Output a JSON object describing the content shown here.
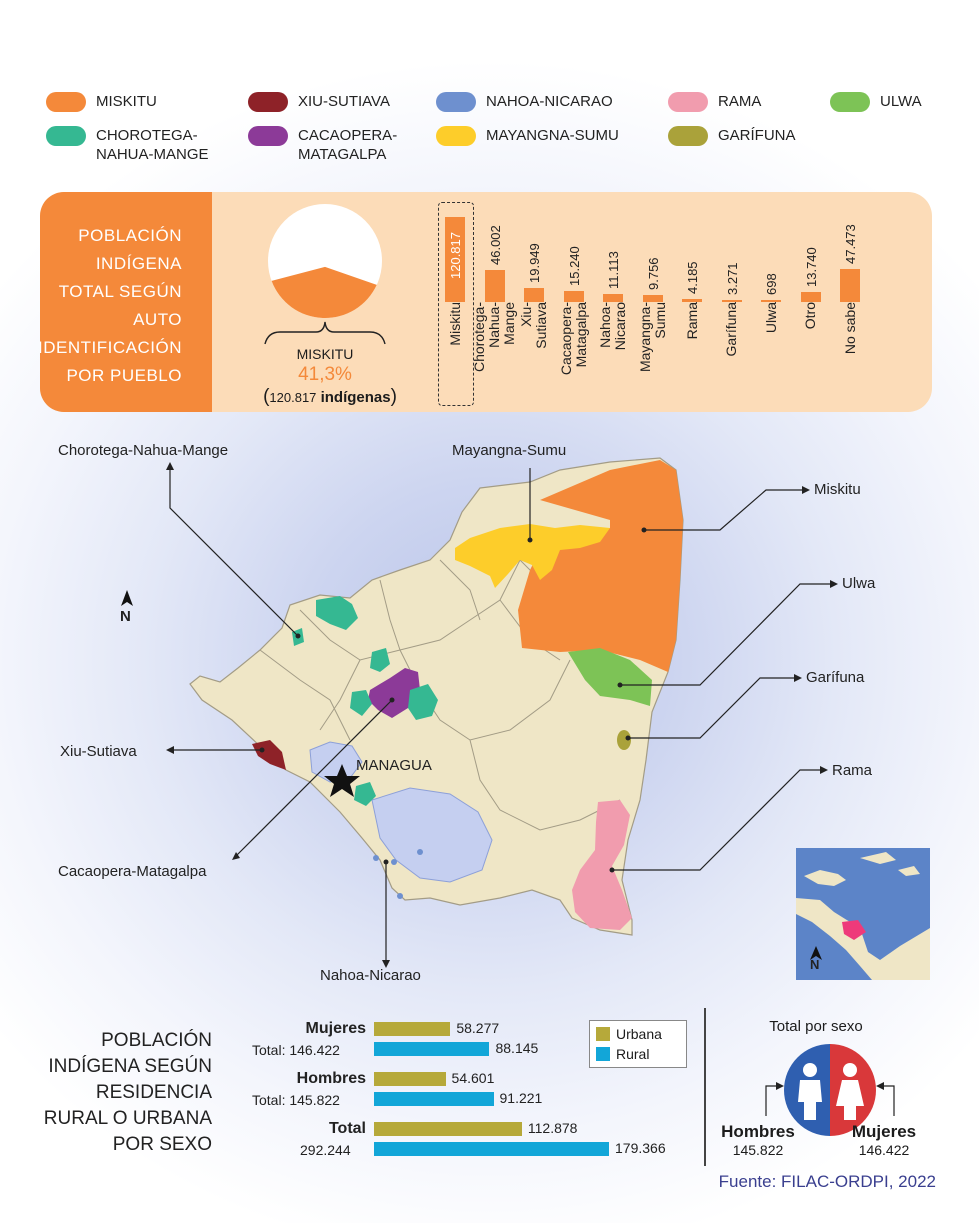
{
  "colors": {
    "orange": "#f4893a",
    "panel_bg": "#fcdcb8",
    "map_land": "#efe6c6",
    "map_border": "#a39c86",
    "water": "#c5cff0",
    "urbana": "#b6a93a",
    "rural": "#12a6d8",
    "male": "#2f5fb0",
    "female": "#d9383a",
    "source_text": "#3a3f8f"
  },
  "legend": [
    {
      "label": "MISKITU",
      "color": "#f4893a"
    },
    {
      "label": "XIU-SUTIAVA",
      "color": "#8e2228"
    },
    {
      "label": "NAHOA-NICARAO",
      "color": "#6e90cf"
    },
    {
      "label": "RAMA",
      "color": "#f19cae"
    },
    {
      "label": "ULWA",
      "color": "#7dc356"
    },
    {
      "label": "CHOROTEGA-\nNAHUA-MANGE",
      "color": "#35b892"
    },
    {
      "label": "CACAOPERA-\nMATAGALPA",
      "color": "#8c3a98"
    },
    {
      "label": "MAYANGNA-SUMU",
      "color": "#fdcd2a"
    },
    {
      "label": "GARÍFUNA",
      "color": "#aaa23a"
    }
  ],
  "panel": {
    "title_lines": [
      "POBLACIÓN",
      "INDÍGENA",
      "TOTAL SEGÚN",
      "AUTO",
      "IDENTIFICACIÓN",
      "POR PUEBLO"
    ],
    "pie_label": "MISKITU",
    "pie_percent_text": "41,3%",
    "pie_count_open": "(",
    "pie_count_num": "120.817",
    "pie_count_word": " indígenas",
    "pie_count_close": ")"
  },
  "chart_data": {
    "type": "bar",
    "categories": [
      "Miskitu",
      "Chorotega-\nNahua-\nMange",
      "Xiu-\nSutiava",
      "Cacaopera-\nMatagalpa",
      "Nahoa-\nNicarao",
      "Mayangna-\nSumu",
      "Rama",
      "Garífuna",
      "Ulwa",
      "Otro",
      "No sabe"
    ],
    "values": [
      120817,
      46002,
      19949,
      15240,
      11113,
      9756,
      4185,
      3271,
      698,
      13740,
      47473
    ],
    "value_labels": [
      "120.817",
      "46.002",
      "19.949",
      "15.240",
      "11.113",
      "9.756",
      "4.185",
      "3.271",
      "698",
      "13.740",
      "47.473"
    ],
    "highlight": "Miskitu",
    "pie_share": 41.3
  },
  "map": {
    "labels": {
      "chorotega": "Chorotega-Nahua-Mange",
      "mayangna": "Mayangna-Sumu",
      "miskitu": "Miskitu",
      "ulwa": "Ulwa",
      "garifuna": "Garífuna",
      "rama": "Rama",
      "xiu": "Xiu-Sutiava",
      "cacaopera": "Cacaopera-Matagalpa",
      "nahoa": "Nahoa-Nicarao",
      "capital": "MANAGUA",
      "north": "N",
      "inset_north": "N"
    }
  },
  "residence": {
    "title_lines": [
      "POBLACIÓN",
      "INDÍGENA SEGÚN",
      "RESIDENCIA",
      "RURAL O URBANA",
      "POR SEXO"
    ],
    "groups": [
      {
        "name": "Mujeres",
        "total_label": "Total:",
        "total": "146.422",
        "urbana": 58277,
        "urbana_text": "58.277",
        "rural": 88145,
        "rural_text": "88.145"
      },
      {
        "name": "Hombres",
        "total_label": "Total:",
        "total": "145.822",
        "urbana": 54601,
        "urbana_text": "54.601",
        "rural": 91221,
        "rural_text": "91.221"
      },
      {
        "name": "Total",
        "total_label": "",
        "total": "292.244",
        "urbana": 112878,
        "urbana_text": "112.878",
        "rural": 179366,
        "rural_text": "179.366"
      }
    ],
    "legend": {
      "urbana": "Urbana",
      "rural": "Rural"
    }
  },
  "sex": {
    "title": "Total por sexo",
    "male_label": "Hombres",
    "male_value": "145.822",
    "female_label": "Mujeres",
    "female_value": "146.422"
  },
  "source": "Fuente: FILAC-ORDPI, 2022"
}
